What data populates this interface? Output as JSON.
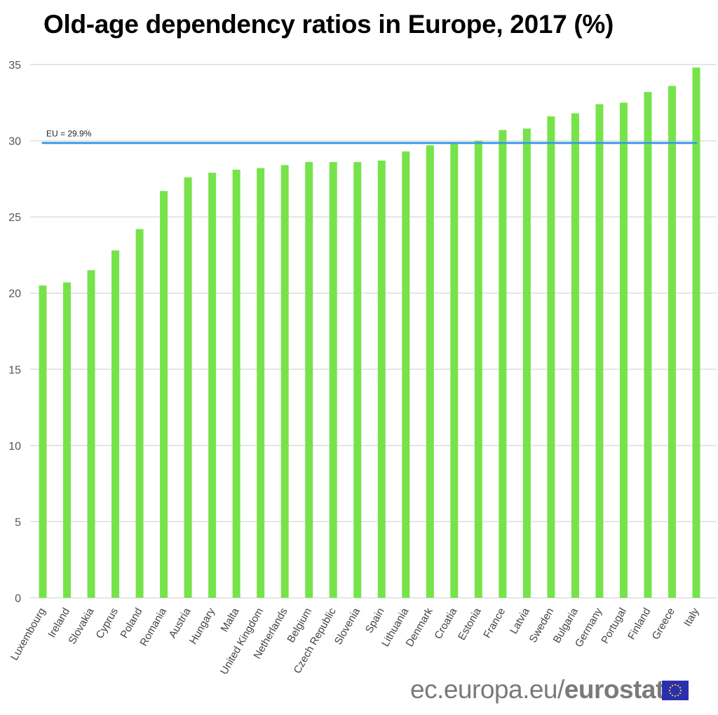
{
  "title": "Old-age dependency ratios in Europe, 2017 (%)",
  "footer": {
    "domain": "ec.europa.eu/",
    "brand": "eurostat",
    "logo_icon": "eu-flag-icon"
  },
  "colors": {
    "bar": "#77e34a",
    "reference_line": "#3d9be9",
    "grid": "#dddddd"
  },
  "chart_data": {
    "type": "bar",
    "title": "Old-age dependency ratios in Europe, 2017 (%)",
    "xlabel": "",
    "ylabel": "",
    "ylim": [
      0,
      35
    ],
    "yticks": [
      0,
      5,
      10,
      15,
      20,
      25,
      30,
      35
    ],
    "grid": true,
    "categories": [
      "Luxembourg",
      "Ireland",
      "Slovakia",
      "Cyprus",
      "Poland",
      "Romania",
      "Austria",
      "Hungary",
      "Malta",
      "United Kingdom",
      "Netherlands",
      "Belgium",
      "Czech Republic",
      "Slovenia",
      "Spain",
      "Lithuania",
      "Denmark",
      "Croatia",
      "Estonia",
      "France",
      "Latvia",
      "Sweden",
      "Bulgaria",
      "Germany",
      "Portugal",
      "Finland",
      "Greece",
      "Italy"
    ],
    "values": [
      20.5,
      20.7,
      21.5,
      22.8,
      24.2,
      26.7,
      27.6,
      27.9,
      28.1,
      28.2,
      28.4,
      28.6,
      28.6,
      28.6,
      28.7,
      29.3,
      29.7,
      29.8,
      30.0,
      30.7,
      30.8,
      31.6,
      31.8,
      32.4,
      32.5,
      33.2,
      33.6,
      34.8
    ],
    "reference_line": {
      "label": "EU = 29.9%",
      "value": 29.9
    }
  }
}
